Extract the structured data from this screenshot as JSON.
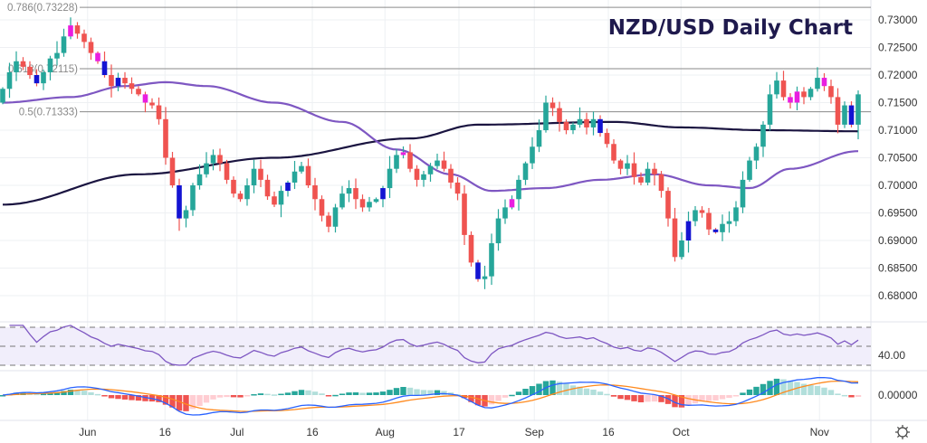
{
  "chart_data": {
    "type": "candlestick",
    "title": "NZD/USD Daily Chart",
    "ylim": [
      0.6775,
      0.7335
    ],
    "y_ticks": [
      "0.73000",
      "0.72500",
      "0.72000",
      "0.71500",
      "0.71000",
      "0.70500",
      "0.70000",
      "0.69500",
      "0.69000",
      "0.68500",
      "0.68000"
    ],
    "y_tick_values": [
      0.73,
      0.725,
      0.72,
      0.715,
      0.71,
      0.705,
      0.7,
      0.695,
      0.69,
      0.685,
      0.68
    ],
    "x_ticks": [
      {
        "label": "Jun",
        "index": 12.5
      },
      {
        "label": "16",
        "index": 23.9
      },
      {
        "label": "Jul",
        "index": 34.5
      },
      {
        "label": "16",
        "index": 45.6
      },
      {
        "label": "Aug",
        "index": 56.3
      },
      {
        "label": "17",
        "index": 67.2
      },
      {
        "label": "Sep",
        "index": 78.3
      },
      {
        "label": "16",
        "index": 89.2
      },
      {
        "label": "Oct",
        "index": 99.9
      },
      {
        "label": "Nov",
        "index": 120.3
      }
    ],
    "fib_levels": [
      {
        "label": "0.786(0.73228)",
        "value": 0.73228
      },
      {
        "label": "0.618(0.72115)",
        "value": 0.72115
      },
      {
        "label": "0.5(0.71333)",
        "value": 0.71333
      }
    ],
    "closes": [
      0.7175,
      0.7205,
      0.7225,
      0.7215,
      0.72,
      0.7185,
      0.7205,
      0.723,
      0.724,
      0.727,
      0.729,
      0.7275,
      0.726,
      0.724,
      0.7225,
      0.72,
      0.718,
      0.7195,
      0.7185,
      0.7175,
      0.7165,
      0.715,
      0.7145,
      0.712,
      0.705,
      0.7,
      0.694,
      0.6955,
      0.7,
      0.702,
      0.704,
      0.7055,
      0.704,
      0.701,
      0.6985,
      0.6975,
      0.7,
      0.703,
      0.701,
      0.698,
      0.6965,
      0.699,
      0.7005,
      0.7025,
      0.7035,
      0.7,
      0.6975,
      0.6945,
      0.6925,
      0.696,
      0.6985,
      0.6995,
      0.6975,
      0.696,
      0.697,
      0.6975,
      0.6995,
      0.703,
      0.7055,
      0.706,
      0.703,
      0.701,
      0.702,
      0.7035,
      0.7045,
      0.703,
      0.7005,
      0.6985,
      0.691,
      0.686,
      0.683,
      0.6835,
      0.6895,
      0.694,
      0.696,
      0.6975,
      0.701,
      0.704,
      0.707,
      0.71,
      0.715,
      0.714,
      0.7115,
      0.71,
      0.711,
      0.712,
      0.7105,
      0.712,
      0.7095,
      0.7075,
      0.7045,
      0.703,
      0.704,
      0.7015,
      0.7005,
      0.703,
      0.702,
      0.699,
      0.694,
      0.687,
      0.69,
      0.6935,
      0.6955,
      0.695,
      0.692,
      0.6915,
      0.693,
      0.6935,
      0.696,
      0.701,
      0.7045,
      0.707,
      0.711,
      0.7165,
      0.719,
      0.716,
      0.715,
      0.717,
      0.716,
      0.7175,
      0.7195,
      0.718,
      0.716,
      0.711,
      0.7145,
      0.711,
      0.7165
    ],
    "first_open": 0.715,
    "highlight_blue": [
      5,
      15,
      17,
      26,
      42,
      56,
      70,
      88,
      101,
      105,
      125
    ],
    "highlight_magenta": [
      10,
      14,
      21,
      59,
      75,
      116,
      117,
      121
    ],
    "ma200": [
      [
        0,
        0.6965
      ],
      [
        20,
        0.702
      ],
      [
        40,
        0.705
      ],
      [
        60,
        0.7085
      ],
      [
        70,
        0.711
      ],
      [
        90,
        0.7115
      ],
      [
        100,
        0.7105
      ],
      [
        112,
        0.71
      ],
      [
        126,
        0.7098
      ]
    ],
    "ma50": [
      [
        0,
        0.715
      ],
      [
        10,
        0.716
      ],
      [
        18,
        0.718
      ],
      [
        24,
        0.7187
      ],
      [
        30,
        0.718
      ],
      [
        40,
        0.715
      ],
      [
        50,
        0.7115
      ],
      [
        58,
        0.7065
      ],
      [
        66,
        0.702
      ],
      [
        72,
        0.699
      ],
      [
        80,
        0.6995
      ],
      [
        88,
        0.701
      ],
      [
        96,
        0.702
      ],
      [
        104,
        0.7
      ],
      [
        110,
        0.6995
      ],
      [
        116,
        0.703
      ],
      [
        126,
        0.7062
      ]
    ],
    "rsi_label": "40.00",
    "macd_label": "0.00000",
    "colors": {
      "up": "#26a69a",
      "down": "#ef5350",
      "blue": "#1414d2",
      "magenta": "#e91ee0",
      "ma200": "#1a1440",
      "ma50": "#7e57c2",
      "rsi": "#7e57c2",
      "macd": "#2962ff",
      "signal": "#ff8a1e"
    }
  }
}
